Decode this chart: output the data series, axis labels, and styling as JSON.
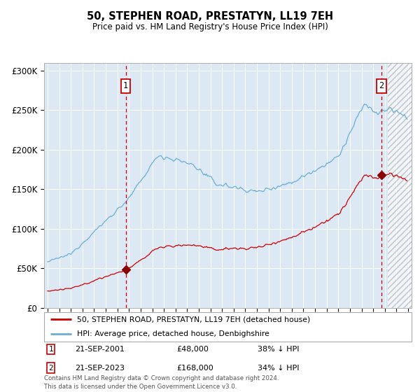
{
  "title": "50, STEPHEN ROAD, PRESTATYN, LL19 7EH",
  "subtitle": "Price paid vs. HM Land Registry's House Price Index (HPI)",
  "legend_line1": "50, STEPHEN ROAD, PRESTATYN, LL19 7EH (detached house)",
  "legend_line2": "HPI: Average price, detached house, Denbighshire",
  "annotation1_date": "21-SEP-2001",
  "annotation1_price": "£48,000",
  "annotation1_hpi": "38% ↓ HPI",
  "annotation2_date": "21-SEP-2023",
  "annotation2_price": "£168,000",
  "annotation2_hpi": "34% ↓ HPI",
  "footer": "Contains HM Land Registry data © Crown copyright and database right 2024.\nThis data is licensed under the Open Government Licence v3.0.",
  "ylim": [
    0,
    310000
  ],
  "yticks": [
    0,
    50000,
    100000,
    150000,
    200000,
    250000,
    300000
  ],
  "ytick_labels": [
    "£0",
    "£50K",
    "£100K",
    "£150K",
    "£200K",
    "£250K",
    "£300K"
  ],
  "background_color": "#dce9f5",
  "hpi_line_color": "#6aaed6",
  "price_line_color": "#cc0000",
  "vline_color": "#cc0000",
  "marker_color": "#8b0000",
  "annotation_box_edgecolor": "#cc0000",
  "sale_date1_x": 2001.72,
  "sale_price1": 48000,
  "sale_date2_x": 2023.72,
  "sale_price2": 168000,
  "xmin": 1994.7,
  "xmax": 2026.3,
  "future_start": 2024.25
}
